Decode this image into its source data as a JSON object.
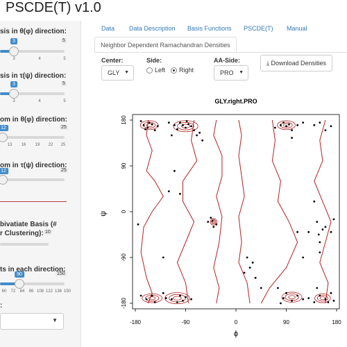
{
  "app": {
    "title": "PSCDE(T) v1.0"
  },
  "sidebar": {
    "sliders": [
      {
        "label": "sis in θ(φ) direction:",
        "value": "3",
        "max": "5",
        "ticks": [
          "3",
          "4",
          "5"
        ],
        "fraction": 0.2
      },
      {
        "label": "sis in τ(ψ) direction:",
        "value": "3",
        "max": "5",
        "ticks": [
          "3",
          "4",
          "5"
        ],
        "fraction": 0.2
      },
      {
        "label": "om in θ(φ) direction:",
        "value": "12",
        "max": "25",
        "ticks": [
          "13",
          "16",
          "19",
          "22",
          "25"
        ],
        "fraction": 0.02
      },
      {
        "label": "om in τ(ψ) direction:",
        "value": "12",
        "max": "25",
        "ticks": [
          "13",
          "16",
          "19",
          "22",
          "25"
        ],
        "fraction": 0.02
      },
      {
        "label_line1": "bivatiate Basis (#",
        "label_line2": "r Clustering):",
        "max": "10"
      },
      {
        "label": "ts in each direction:",
        "value": "90",
        "max": "150",
        "ticks": [
          "60",
          "72",
          "84",
          "96",
          "108",
          "122",
          "136",
          "150"
        ],
        "fraction": 0.31
      }
    ],
    "select_label": ":"
  },
  "tabs": [
    {
      "label": "Data"
    },
    {
      "label": "Data Description"
    },
    {
      "label": "Basis Functions"
    },
    {
      "label": "PSCDE(T)"
    },
    {
      "label": "Manual"
    }
  ],
  "active_subtab": "Neighbor Dependent Ramachandran Densities",
  "controls": {
    "center_label": "Center:",
    "center_value": "GLY",
    "side_label": "Side:",
    "side_options": [
      {
        "label": "Left",
        "checked": false
      },
      {
        "label": "Right",
        "checked": true
      }
    ],
    "aa_label": "AA-Side:",
    "aa_value": "PRO",
    "download_label": "Download Densities",
    "download_icon": "download-icon"
  },
  "chart_data": {
    "type": "contour",
    "title": "GLY.right.PRO",
    "xlabel": "ϕ",
    "ylabel": "ψ",
    "xlim": [
      -180,
      180
    ],
    "ylim": [
      -180,
      180
    ],
    "xticks": [
      -180,
      -90,
      0,
      90,
      180
    ],
    "yticks": [
      -180,
      -90,
      0,
      90,
      180
    ],
    "xtick_labels": [
      "-180",
      "-90",
      "0",
      "90",
      "180"
    ],
    "ytick_labels": [
      "-180",
      "-90",
      "0",
      "90",
      "180"
    ],
    "contour_color": "#b22222",
    "point_color": "#000000",
    "contour_lines": [
      {
        "points": [
          [
            -157,
            180
          ],
          [
            -160,
            150
          ],
          [
            -150,
            120
          ],
          [
            -155,
            100
          ],
          [
            -160,
            80
          ],
          [
            -145,
            60
          ],
          [
            -130,
            30
          ],
          [
            -150,
            0
          ],
          [
            -165,
            -30
          ],
          [
            -170,
            -80
          ],
          [
            -160,
            -130
          ],
          [
            -150,
            -160
          ],
          [
            -157,
            -180
          ]
        ]
      },
      {
        "points": [
          [
            -75,
            180
          ],
          [
            -80,
            140
          ],
          [
            -70,
            100
          ],
          [
            -95,
            60
          ],
          [
            -95,
            20
          ],
          [
            -75,
            -20
          ],
          [
            -90,
            -60
          ],
          [
            -105,
            -100
          ],
          [
            -90,
            -140
          ],
          [
            -85,
            -180
          ]
        ]
      },
      {
        "points": [
          [
            -35,
            180
          ],
          [
            -40,
            150
          ],
          [
            -25,
            110
          ],
          [
            -25,
            70
          ],
          [
            -35,
            30
          ],
          [
            -25,
            -10
          ],
          [
            -30,
            -60
          ],
          [
            -40,
            -110
          ],
          [
            -30,
            -150
          ],
          [
            -35,
            -180
          ]
        ]
      },
      {
        "points": [
          [
            5,
            180
          ],
          [
            10,
            150
          ],
          [
            5,
            110
          ],
          [
            10,
            70
          ],
          [
            15,
            30
          ],
          [
            5,
            -10
          ],
          [
            10,
            -60
          ],
          [
            5,
            -100
          ],
          [
            20,
            -140
          ],
          [
            25,
            -180
          ]
        ]
      },
      {
        "points": [
          [
            65,
            180
          ],
          [
            70,
            140
          ],
          [
            65,
            100
          ],
          [
            80,
            60
          ],
          [
            75,
            20
          ],
          [
            95,
            -20
          ],
          [
            110,
            -60
          ],
          [
            90,
            -110
          ],
          [
            60,
            -150
          ],
          [
            45,
            -180
          ]
        ]
      },
      {
        "points": [
          [
            160,
            180
          ],
          [
            150,
            140
          ],
          [
            155,
            100
          ],
          [
            140,
            60
          ],
          [
            155,
            20
          ],
          [
            170,
            -20
          ],
          [
            160,
            -60
          ],
          [
            150,
            -100
          ],
          [
            165,
            -140
          ],
          [
            160,
            -180
          ]
        ]
      }
    ],
    "clusters": [
      {
        "x": -105,
        "y": -170,
        "rx": 22,
        "ry": 10
      },
      {
        "x": -150,
        "y": -170,
        "rx": 18,
        "ry": 8
      },
      {
        "x": -155,
        "y": 170,
        "rx": 16,
        "ry": 8
      },
      {
        "x": -90,
        "y": 168,
        "rx": 22,
        "ry": 10
      },
      {
        "x": 100,
        "y": -168,
        "rx": 18,
        "ry": 9
      },
      {
        "x": 155,
        "y": -170,
        "rx": 14,
        "ry": 8
      },
      {
        "x": 90,
        "y": 170,
        "rx": 16,
        "ry": 8
      },
      {
        "x": -40,
        "y": -20,
        "rx": 6,
        "ry": 6
      }
    ],
    "points": [
      [
        -165,
        170
      ],
      [
        -158,
        165
      ],
      [
        -150,
        172
      ],
      [
        -145,
        160
      ],
      [
        -170,
        178
      ],
      [
        -155,
        175
      ],
      [
        -140,
        168
      ],
      [
        -162,
        162
      ],
      [
        -100,
        175
      ],
      [
        -95,
        170
      ],
      [
        -90,
        165
      ],
      [
        -85,
        172
      ],
      [
        -80,
        168
      ],
      [
        -75,
        160
      ],
      [
        -105,
        162
      ],
      [
        -110,
        170
      ],
      [
        -70,
        150
      ],
      [
        -60,
        140
      ],
      [
        -65,
        155
      ],
      [
        -115,
        150
      ],
      [
        -120,
        175
      ],
      [
        -88,
        178
      ],
      [
        -125,
        -170
      ],
      [
        -115,
        -172
      ],
      [
        -100,
        -165
      ],
      [
        -95,
        -175
      ],
      [
        -90,
        -168
      ],
      [
        -80,
        -172
      ],
      [
        -105,
        -178
      ],
      [
        -130,
        -160
      ],
      [
        -150,
        -165
      ],
      [
        -160,
        -172
      ],
      [
        -145,
        -178
      ],
      [
        -170,
        -165
      ],
      [
        -50,
        -20
      ],
      [
        -42,
        -18
      ],
      [
        -40,
        -30
      ],
      [
        -35,
        -25
      ],
      [
        -45,
        -12
      ],
      [
        -120,
        40
      ],
      [
        -110,
        80
      ],
      [
        -100,
        35
      ],
      [
        -130,
        -90
      ],
      [
        -175,
        -25
      ],
      [
        80,
        170
      ],
      [
        90,
        168
      ],
      [
        95,
        172
      ],
      [
        100,
        160
      ],
      [
        85,
        175
      ],
      [
        110,
        170
      ],
      [
        120,
        175
      ],
      [
        70,
        165
      ],
      [
        140,
        170
      ],
      [
        150,
        175
      ],
      [
        170,
        168
      ],
      [
        160,
        160
      ],
      [
        100,
        145
      ],
      [
        85,
        -170
      ],
      [
        90,
        -160
      ],
      [
        100,
        -175
      ],
      [
        110,
        -165
      ],
      [
        120,
        -172
      ],
      [
        75,
        -150
      ],
      [
        80,
        -180
      ],
      [
        130,
        -170
      ],
      [
        140,
        -178
      ],
      [
        150,
        -165
      ],
      [
        160,
        -172
      ],
      [
        170,
        -160
      ],
      [
        175,
        -175
      ],
      [
        165,
        -178
      ],
      [
        145,
        -150
      ],
      [
        145,
        -20
      ],
      [
        148,
        -45
      ],
      [
        155,
        -35
      ],
      [
        160,
        -30
      ],
      [
        175,
        -15
      ],
      [
        170,
        -40
      ],
      [
        130,
        -40
      ],
      [
        150,
        -60
      ],
      [
        120,
        -90
      ],
      [
        15,
        -120
      ],
      [
        25,
        -110
      ],
      [
        30,
        -100
      ],
      [
        20,
        -90
      ],
      [
        35,
        -130
      ],
      [
        45,
        -150
      ],
      [
        110,
        -40
      ],
      [
        140,
        20
      ],
      [
        150,
        -80
      ]
    ]
  }
}
